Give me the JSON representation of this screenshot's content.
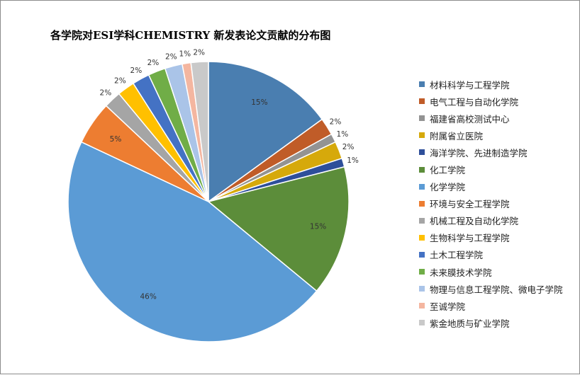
{
  "chart_data": {
    "type": "pie",
    "title": "各学院对ESI学科CHEMISTRY 新发表论文贡献的分布图",
    "legend_position": "right",
    "series": [
      {
        "name": "材料科学与工程学院",
        "value": 15,
        "label": "15%",
        "color": "#4a7eb0"
      },
      {
        "name": "电气工程与自动化学院",
        "value": 2,
        "label": "2%",
        "color": "#c05c28"
      },
      {
        "name": "福建省高校测试中心",
        "value": 1,
        "label": "1%",
        "color": "#939393"
      },
      {
        "name": "附属省立医院",
        "value": 2,
        "label": "2%",
        "color": "#d6a90b"
      },
      {
        "name": "海洋学院、先进制造学院",
        "value": 1,
        "label": "1%",
        "color": "#2e4f9a"
      },
      {
        "name": "化工学院",
        "value": 15,
        "label": "15%",
        "color": "#5c8d3a"
      },
      {
        "name": "化学学院",
        "value": 46,
        "label": "46%",
        "color": "#5b9bd5"
      },
      {
        "name": "环境与安全工程学院",
        "value": 5,
        "label": "5%",
        "color": "#ed7d31"
      },
      {
        "name": "机械工程及自动化学院",
        "value": 2,
        "label": "2%",
        "color": "#a5a5a5"
      },
      {
        "name": "生物科学与工程学院",
        "value": 2,
        "label": "2%",
        "color": "#ffc000"
      },
      {
        "name": "土木工程学院",
        "value": 2,
        "label": "2%",
        "color": "#4472c4"
      },
      {
        "name": "未来膜技术学院",
        "value": 2,
        "label": "2%",
        "color": "#70ad47"
      },
      {
        "name": "物理与信息工程学院、微电子学院",
        "value": 2,
        "label": "2%",
        "color": "#aac4e8"
      },
      {
        "name": "至诚学院",
        "value": 1,
        "label": "1%",
        "color": "#f4b6a0"
      },
      {
        "name": "紫金地质与矿业学院",
        "value": 2,
        "label": "2%",
        "color": "#c9c9c9"
      }
    ]
  }
}
